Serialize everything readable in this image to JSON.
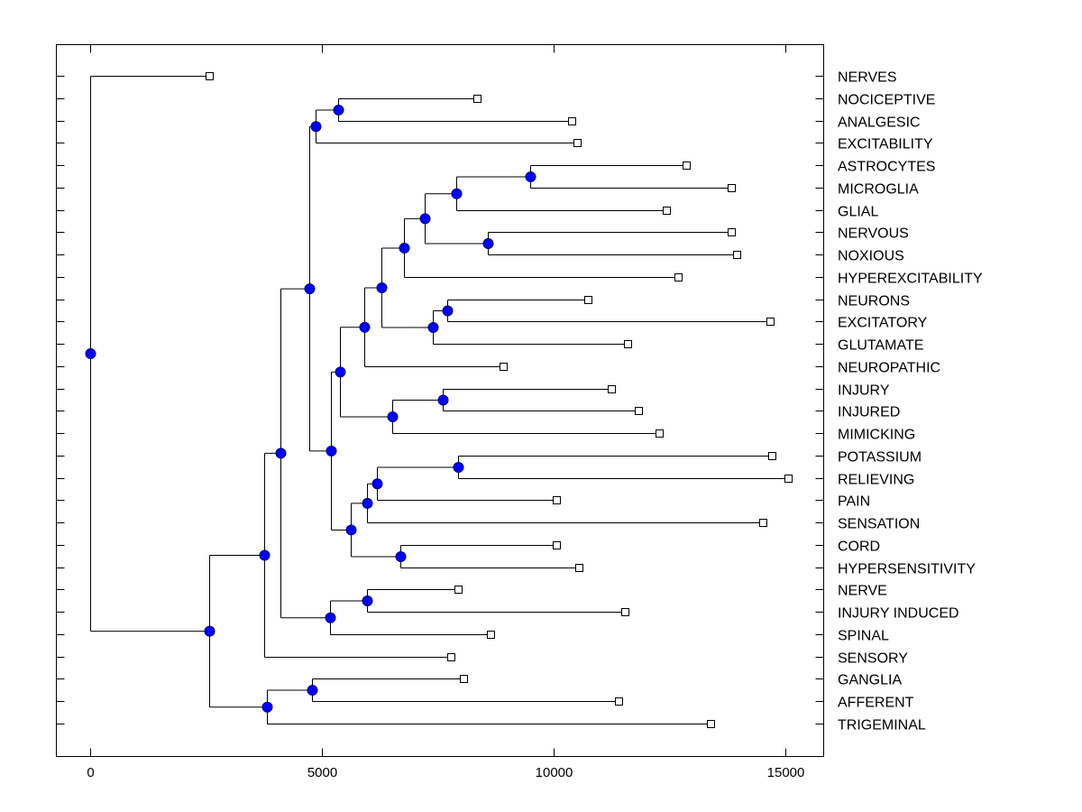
{
  "chart_data": {
    "type": "dendrogram",
    "title": "",
    "xlabel": "",
    "ylabel": "",
    "xlim": [
      -750,
      15900
    ],
    "x_ticks": [
      0,
      5000,
      10000,
      15000
    ],
    "x_tick_labels": [
      "0",
      "5000",
      "10000",
      "15000"
    ],
    "grid": false,
    "colors": {
      "node_fill": "#0000ff",
      "line": "#000000",
      "leaf_marker_fill": "#ffffff"
    },
    "leaves": [
      {
        "name": "NERVES",
        "x": 2570
      },
      {
        "name": "NOCICEPTIVE",
        "x": 8350
      },
      {
        "name": "ANALGESIC",
        "x": 10390
      },
      {
        "name": "EXCITABILITY",
        "x": 10510
      },
      {
        "name": "ASTROCYTES",
        "x": 12860
      },
      {
        "name": "MICROGLIA",
        "x": 13830
      },
      {
        "name": "GLIAL",
        "x": 12430
      },
      {
        "name": "NERVOUS",
        "x": 13830
      },
      {
        "name": "NOXIOUS",
        "x": 13950
      },
      {
        "name": "HYPEREXCITABILITY",
        "x": 12680
      },
      {
        "name": "NEURONS",
        "x": 10740
      },
      {
        "name": "EXCITATORY",
        "x": 14670
      },
      {
        "name": "GLUTAMATE",
        "x": 11600
      },
      {
        "name": "NEUROPATHIC",
        "x": 8910
      },
      {
        "name": "INJURY",
        "x": 11250
      },
      {
        "name": "INJURED",
        "x": 11830
      },
      {
        "name": "MIMICKING",
        "x": 12280
      },
      {
        "name": "POTASSIUM",
        "x": 14710
      },
      {
        "name": "RELIEVING",
        "x": 15060
      },
      {
        "name": "PAIN",
        "x": 10060
      },
      {
        "name": "SENSATION",
        "x": 14510
      },
      {
        "name": "CORD",
        "x": 10060
      },
      {
        "name": "HYPERSENSITIVITY",
        "x": 10540
      },
      {
        "name": "NERVE",
        "x": 7940
      },
      {
        "name": "INJURY INDUCED",
        "x": 11540
      },
      {
        "name": "SPINAL",
        "x": 8640
      },
      {
        "name": "SENSORY",
        "x": 7780
      },
      {
        "name": "GANGLIA",
        "x": 8050
      },
      {
        "name": "AFFERENT",
        "x": 11400
      },
      {
        "name": "TRIGEMINAL",
        "x": 13390
      }
    ],
    "nodes": [
      {
        "id": "n1",
        "x": 5350,
        "children": [
          "NOCICEPTIVE",
          "ANALGESIC"
        ]
      },
      {
        "id": "n2",
        "x": 4860,
        "children": [
          "n1",
          "EXCITABILITY"
        ]
      },
      {
        "id": "n3",
        "x": 9490,
        "children": [
          "ASTROCYTES",
          "MICROGLIA"
        ]
      },
      {
        "id": "n4",
        "x": 7900,
        "children": [
          "n3",
          "GLIAL"
        ]
      },
      {
        "id": "n5",
        "x": 8580,
        "children": [
          "NERVOUS",
          "NOXIOUS"
        ]
      },
      {
        "id": "n6",
        "x": 7220,
        "children": [
          "n4",
          "n5"
        ]
      },
      {
        "id": "n7",
        "x": 6770,
        "children": [
          "n6",
          "HYPEREXCITABILITY"
        ]
      },
      {
        "id": "n8",
        "x": 7700,
        "children": [
          "NEURONS",
          "EXCITATORY"
        ]
      },
      {
        "id": "n9",
        "x": 7390,
        "children": [
          "n8",
          "GLUTAMATE"
        ]
      },
      {
        "id": "n10",
        "x": 6280,
        "children": [
          "n7",
          "n9"
        ]
      },
      {
        "id": "n11",
        "x": 5910,
        "children": [
          "n10",
          "NEUROPATHIC"
        ]
      },
      {
        "id": "n12",
        "x": 7610,
        "children": [
          "INJURY",
          "INJURED"
        ]
      },
      {
        "id": "n13",
        "x": 6520,
        "children": [
          "n12",
          "MIMICKING"
        ]
      },
      {
        "id": "n14",
        "x": 5390,
        "children": [
          "n11",
          "n13"
        ]
      },
      {
        "id": "n15",
        "x": 7940,
        "children": [
          "POTASSIUM",
          "RELIEVING"
        ]
      },
      {
        "id": "n16",
        "x": 6190,
        "children": [
          "n15",
          "PAIN"
        ]
      },
      {
        "id": "n17",
        "x": 5970,
        "children": [
          "n16",
          "SENSATION"
        ]
      },
      {
        "id": "n18",
        "x": 6690,
        "children": [
          "CORD",
          "HYPERSENSITIVITY"
        ]
      },
      {
        "id": "n19",
        "x": 5620,
        "children": [
          "n17",
          "n18"
        ]
      },
      {
        "id": "n20",
        "x": 5190,
        "children": [
          "n14",
          "n19"
        ]
      },
      {
        "id": "n21",
        "x": 4730,
        "children": [
          "n2",
          "n20"
        ]
      },
      {
        "id": "n22",
        "x": 5970,
        "children": [
          "NERVE",
          "INJURY INDUCED"
        ]
      },
      {
        "id": "n23",
        "x": 5180,
        "children": [
          "n22",
          "SPINAL"
        ]
      },
      {
        "id": "n24",
        "x": 4110,
        "children": [
          "n21",
          "n23"
        ]
      },
      {
        "id": "n25",
        "x": 3750,
        "children": [
          "n24",
          "SENSORY"
        ]
      },
      {
        "id": "n26",
        "x": 4790,
        "children": [
          "GANGLIA",
          "AFFERENT"
        ]
      },
      {
        "id": "n27",
        "x": 3810,
        "children": [
          "n26",
          "TRIGEMINAL"
        ]
      },
      {
        "id": "n28",
        "x": 2570,
        "children": [
          "n25",
          "n27"
        ]
      },
      {
        "id": "root",
        "x": 0,
        "children": [
          "NERVES",
          "n28"
        ]
      }
    ]
  }
}
